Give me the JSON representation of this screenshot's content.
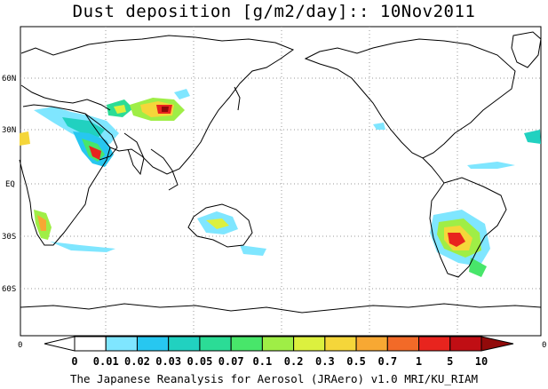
{
  "title": "Dust deposition [g/m2/day]:: 10Nov2011",
  "map": {
    "lat_labels": [
      "60N",
      "30N",
      "EQ",
      "30S",
      "60S"
    ],
    "land_color": "#ffffff",
    "coast_color": "#000000",
    "grid_color": "#9a9a9a"
  },
  "colorbar": {
    "edge_left": "0",
    "edge_right": "0",
    "levels": [
      "0",
      "0.01",
      "0.02",
      "0.03",
      "0.05",
      "0.07",
      "0.1",
      "0.2",
      "0.3",
      "0.5",
      "0.7",
      "1",
      "5",
      "10"
    ],
    "colors": [
      "#ffffff",
      "#7fe6ff",
      "#27c7f0",
      "#21d1c0",
      "#2bdc96",
      "#48e66a",
      "#9fee46",
      "#dcf03e",
      "#f5d63a",
      "#f7a833",
      "#f26a28",
      "#e8241e",
      "#c00e14",
      "#920a0a"
    ]
  },
  "credit": "The Japanese Reanalysis for Aerosol (JRAero) v1.0 MRI/KU_RIAM"
}
